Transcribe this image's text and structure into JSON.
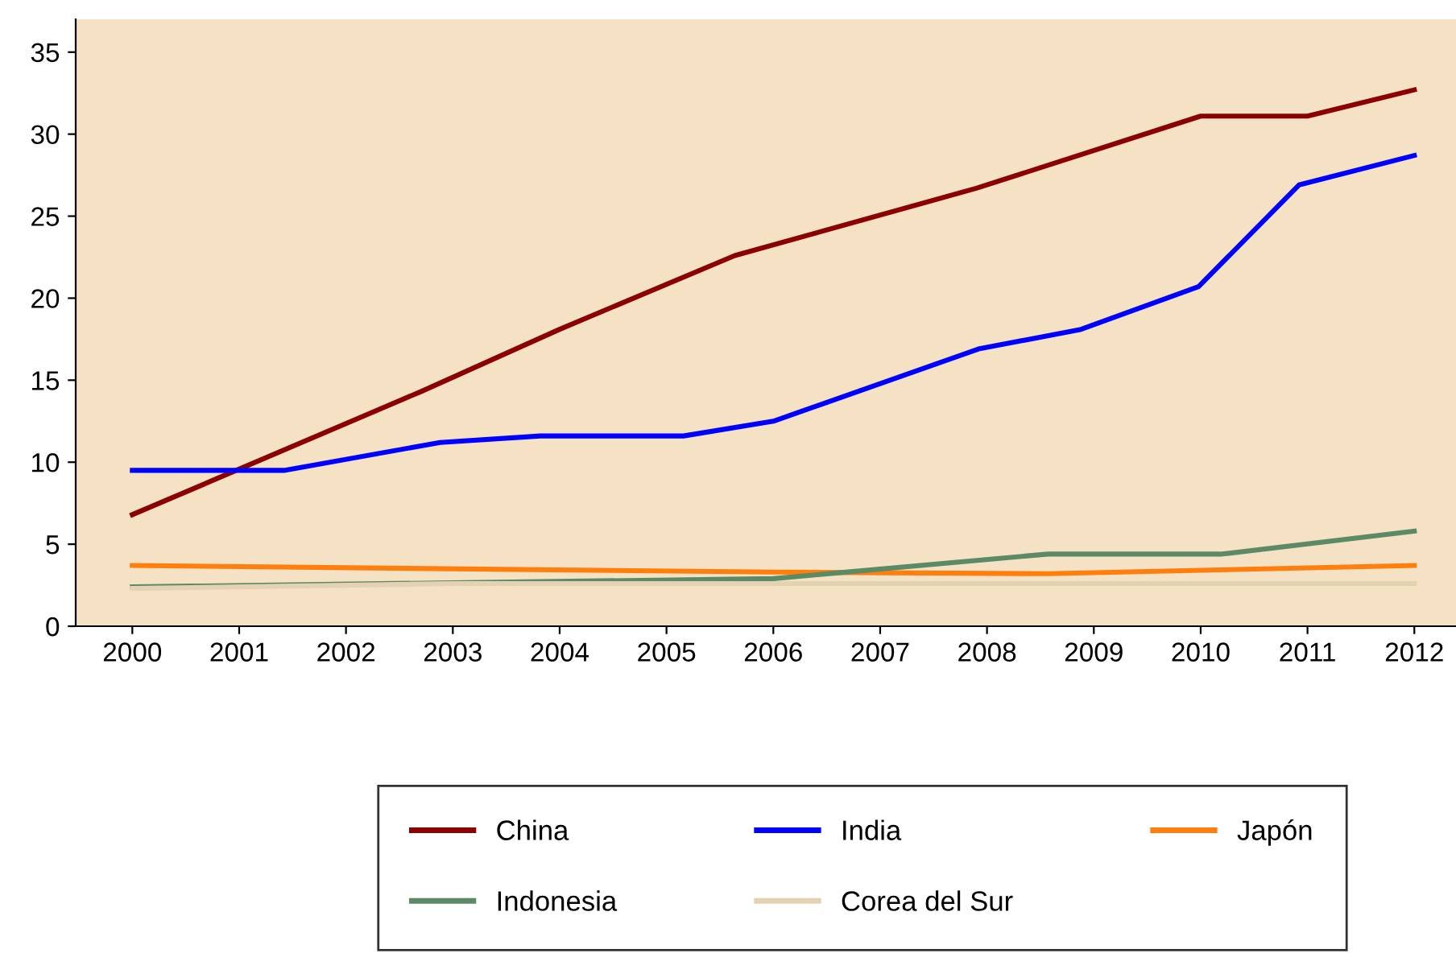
{
  "chart_data": {
    "type": "line",
    "xlim": [
      1999.47,
      2012.39
    ],
    "xticks": [
      2000,
      2001,
      2002,
      2003,
      2004,
      2005,
      2006,
      2007,
      2008,
      2009,
      2010,
      2011,
      2012
    ],
    "ylim": [
      0,
      37
    ],
    "yticks": [
      0,
      5,
      10,
      15,
      20,
      25,
      30,
      35
    ],
    "grid": false,
    "legend": "bottom",
    "marker": "none",
    "line_style": "solid",
    "series": [
      {
        "name": "China",
        "color": "#8b0000",
        "x": [
          2000,
          2002.7,
          2004,
          2005.64,
          2007.9,
          2010.0,
          2011.0,
          2012
        ],
        "values": [
          6.8,
          14.3,
          18.1,
          22.6,
          26.7,
          31.1,
          31.1,
          32.7
        ]
      },
      {
        "name": "India",
        "color": "#0000ff",
        "x": [
          2000,
          2001.42,
          2002.88,
          2003.82,
          2005.16,
          2006.0,
          2007.92,
          2008.88,
          2009.98,
          2010.92,
          2012
        ],
        "values": [
          9.5,
          9.5,
          11.2,
          11.6,
          11.6,
          12.5,
          16.9,
          18.1,
          20.7,
          26.9,
          28.7
        ]
      },
      {
        "name": "Japón",
        "color": "#ff7f0e",
        "x": [
          2000,
          2006,
          2008.57,
          2012
        ],
        "values": [
          3.7,
          3.3,
          3.2,
          3.7
        ]
      },
      {
        "name": "Indonesia",
        "color": "#5b8a65",
        "x": [
          2000,
          2006,
          2008.57,
          2010.2,
          2012
        ],
        "values": [
          2.4,
          2.9,
          4.4,
          4.4,
          5.8
        ]
      },
      {
        "name": "Corea del Sur",
        "color": "#e3d3b3",
        "x": [
          2000,
          2003,
          2012
        ],
        "values": [
          2.3,
          2.6,
          2.6
        ]
      }
    ]
  }
}
